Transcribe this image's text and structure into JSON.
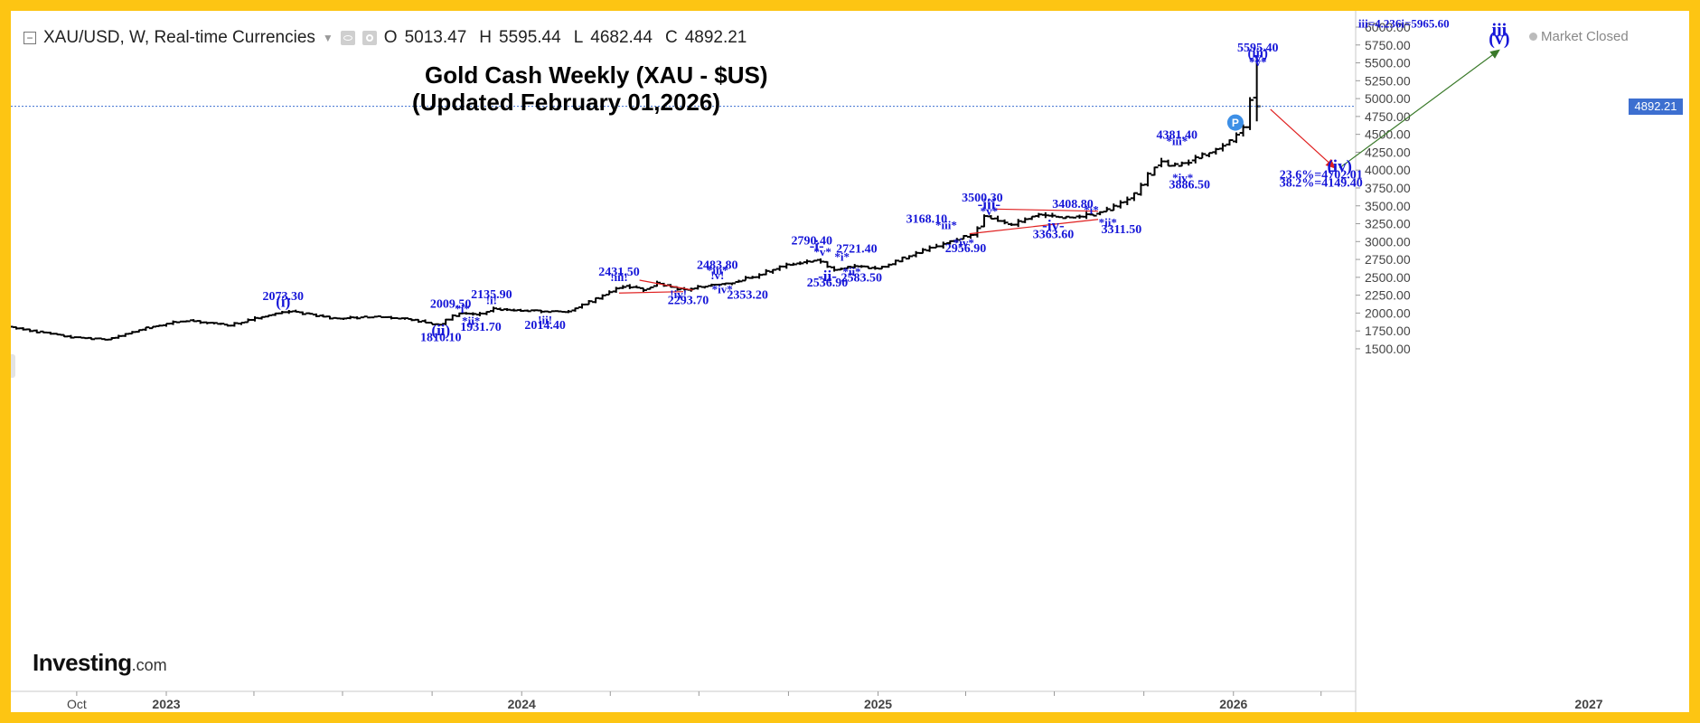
{
  "header": {
    "symbol_title": "XAU/USD, W, Real-time Currencies",
    "ohlc": [
      {
        "key": "O",
        "value": "5013.47"
      },
      {
        "key": "H",
        "value": "5595.44"
      },
      {
        "key": "L",
        "value": "4682.44"
      },
      {
        "key": "C",
        "value": "4892.21"
      }
    ]
  },
  "market_status": "Market Closed",
  "title_line1": "Gold Cash Weekly (XAU - $US)",
  "title_line2": "(Updated February 01,2026)",
  "logo": {
    "main": "Investing",
    "suffix": ".com"
  },
  "current_price_label": "4892.21",
  "colors": {
    "frame": "#fdc513",
    "label": "#1616d8",
    "bars": "#000000",
    "price_line": "#3d6fd0",
    "up_arrow": "#3a7a2a",
    "down_arrow": "#e02020",
    "triangle": "#e02020"
  },
  "chart_data": {
    "type": "ohlc",
    "symbol": "XAU/USD",
    "interval": "W",
    "ylim": [
      1380,
      6080
    ],
    "y_ticks": [
      "6000.00",
      "5750.00",
      "5500.00",
      "5250.00",
      "5000.00",
      "4750.00",
      "4500.00",
      "4250.00",
      "4000.00",
      "3750.00",
      "3500.00",
      "3250.00",
      "3000.00",
      "2750.00",
      "2500.00",
      "2250.00",
      "2000.00",
      "1750.00",
      "1500.00"
    ],
    "x_ticks": [
      {
        "label": "Oct",
        "date": "2022-10-01",
        "bold": false
      },
      {
        "label": "2023",
        "date": "2023-01-01",
        "bold": true
      },
      {
        "label": "2024",
        "date": "2024-01-01",
        "bold": true
      },
      {
        "label": "2025",
        "date": "2025-01-01",
        "bold": true
      },
      {
        "label": "2026",
        "date": "2026-01-01",
        "bold": true
      },
      {
        "label": "2027",
        "date": "2027-01-01",
        "bold": true
      }
    ],
    "last_close": 4892.21,
    "price_path": [
      [
        "2022-07-24",
        1800
      ],
      [
        "2022-09-25",
        1660
      ],
      [
        "2022-11-01",
        1630
      ],
      [
        "2022-12-10",
        1790
      ],
      [
        "2023-01-20",
        1900
      ],
      [
        "2023-03-05",
        1830
      ],
      [
        "2023-05-04",
        2030
      ],
      [
        "2023-06-25",
        1920
      ],
      [
        "2023-08-01",
        1950
      ],
      [
        "2023-09-10",
        1910
      ],
      [
        "2023-10-06",
        1830
      ],
      [
        "2023-10-27",
        2000
      ],
      [
        "2023-11-15",
        1975
      ],
      [
        "2023-12-03",
        2060
      ],
      [
        "2023-12-15",
        2040
      ],
      [
        "2024-01-20",
        2030
      ],
      [
        "2024-02-14",
        2010
      ],
      [
        "2024-03-10",
        2160
      ],
      [
        "2024-04-12",
        2380
      ],
      [
        "2024-05-05",
        2330
      ],
      [
        "2024-05-20",
        2420
      ],
      [
        "2024-06-15",
        2320
      ],
      [
        "2024-07-15",
        2400
      ],
      [
        "2024-08-04",
        2430
      ],
      [
        "2024-08-25",
        2510
      ],
      [
        "2024-09-25",
        2660
      ],
      [
        "2024-10-30",
        2750
      ],
      [
        "2024-11-14",
        2600
      ],
      [
        "2024-12-10",
        2660
      ],
      [
        "2024-12-30",
        2620
      ],
      [
        "2025-02-01",
        2800
      ],
      [
        "2025-03-10",
        2980
      ],
      [
        "2025-04-08",
        3100
      ],
      [
        "2025-04-20",
        3350
      ],
      [
        "2025-05-15",
        3230
      ],
      [
        "2025-06-12",
        3380
      ],
      [
        "2025-07-10",
        3330
      ],
      [
        "2025-08-10",
        3380
      ],
      [
        "2025-08-25",
        3450
      ],
      [
        "2025-09-20",
        3650
      ],
      [
        "2025-10-17",
        4150
      ],
      [
        "2025-10-27",
        4050
      ],
      [
        "2025-11-12",
        4100
      ],
      [
        "2025-12-10",
        4280
      ],
      [
        "2025-12-28",
        4400
      ],
      [
        "2026-01-11",
        4600
      ],
      [
        "2026-01-20",
        4980
      ],
      [
        "2026-01-31",
        4892.21
      ]
    ],
    "price_line": 4892.21,
    "projection": {
      "down": {
        "from": [
          "2026-02-08",
          4850
        ],
        "to": [
          "2026-04-15",
          4030
        ]
      },
      "up": {
        "from": [
          "2026-04-20",
          4030
        ],
        "to": [
          "2026-10-01",
          5680
        ]
      }
    },
    "triangles": [
      {
        "upper": [
          [
            "2024-05-01",
            2460
          ],
          [
            "2024-06-25",
            2320
          ]
        ],
        "lower": [
          [
            "2024-04-10",
            2280
          ],
          [
            "2024-06-15",
            2300
          ]
        ]
      },
      {
        "upper": [
          [
            "2025-05-01",
            3455
          ],
          [
            "2025-08-15",
            3425
          ]
        ],
        "lower": [
          [
            "2025-04-05",
            3110
          ],
          [
            "2025-08-15",
            3310
          ]
        ]
      }
    ],
    "markers": [
      {
        "label": "P",
        "date": "2026-01-03",
        "price": 4665
      }
    ],
    "annotations": [
      {
        "text": "5595.40",
        "date": "2026-01-26",
        "price": 5658,
        "size": 14
      },
      {
        "text": "(iii)",
        "date": "2026-01-26",
        "price": 5576,
        "size": 15
      },
      {
        "text": "-v-",
        "date": "2026-01-26",
        "price": 5510,
        "size": 17
      },
      {
        "text": "*v*",
        "date": "2026-01-26",
        "price": 5455,
        "size": 13
      },
      {
        "text": "iii=4.236i=5965.60",
        "date": "2026-06-25",
        "price": 5995,
        "size": 13
      },
      {
        "text": "iii",
        "date": "2026-10-01",
        "price": 5880,
        "size": 20
      },
      {
        "text": "(v)",
        "date": "2026-10-01",
        "price": 5760,
        "size": 20
      },
      {
        "text": "(iv)",
        "date": "2026-04-20",
        "price": 3980,
        "size": 19
      },
      {
        "text": "23.6%=4702.01",
        "date": "2026-04-01",
        "price": 3880,
        "size": 14
      },
      {
        "text": "38.2%=4149.40",
        "date": "2026-04-01",
        "price": 3770,
        "size": 14
      },
      {
        "text": "4381.40",
        "date": "2025-11-04",
        "price": 4440,
        "size": 14
      },
      {
        "text": "*iii*",
        "date": "2025-11-04",
        "price": 4350,
        "size": 13
      },
      {
        "text": "*iv*",
        "date": "2025-11-10",
        "price": 3840,
        "size": 13
      },
      {
        "text": "3886.50",
        "date": "2025-11-17",
        "price": 3745,
        "size": 14
      },
      {
        "text": "3500.30",
        "date": "2025-04-18",
        "price": 3560,
        "size": 14
      },
      {
        "text": "-iii-",
        "date": "2025-04-25",
        "price": 3450,
        "size": 17
      },
      {
        "text": "*v*",
        "date": "2025-04-25",
        "price": 3370,
        "size": 13
      },
      {
        "text": "3408.80",
        "date": "2025-07-20",
        "price": 3470,
        "size": 14
      },
      {
        "text": "*i*",
        "date": "2025-08-08",
        "price": 3390,
        "size": 13
      },
      {
        "text": "*ii*",
        "date": "2025-08-25",
        "price": 3215,
        "size": 13
      },
      {
        "text": "-iv-",
        "date": "2025-06-30",
        "price": 3155,
        "size": 17
      },
      {
        "text": "3311.50",
        "date": "2025-09-08",
        "price": 3120,
        "size": 14
      },
      {
        "text": "3363.60",
        "date": "2025-06-30",
        "price": 3050,
        "size": 14
      },
      {
        "text": "3168.10",
        "date": "2025-02-20",
        "price": 3265,
        "size": 14
      },
      {
        "text": "*iii*",
        "date": "2025-03-12",
        "price": 3175,
        "size": 13
      },
      {
        "text": "*iv*",
        "date": "2025-03-30",
        "price": 2930,
        "size": 13
      },
      {
        "text": "2956.90",
        "date": "2025-04-01",
        "price": 2850,
        "size": 14
      },
      {
        "text": "2790.40",
        "date": "2024-10-25",
        "price": 2960,
        "size": 14
      },
      {
        "text": "-i-",
        "date": "2024-10-30",
        "price": 2870,
        "size": 17
      },
      {
        "text": "*v*",
        "date": "2024-11-05",
        "price": 2800,
        "size": 13
      },
      {
        "text": "2721.40",
        "date": "2024-12-10",
        "price": 2845,
        "size": 14
      },
      {
        "text": "*i*",
        "date": "2024-11-25",
        "price": 2730,
        "size": 13
      },
      {
        "text": "*ii*",
        "date": "2024-12-05",
        "price": 2525,
        "size": 13
      },
      {
        "text": "-ii-",
        "date": "2024-11-10",
        "price": 2450,
        "size": 17
      },
      {
        "text": "2583.50",
        "date": "2024-12-15",
        "price": 2440,
        "size": 14
      },
      {
        "text": "2536.90",
        "date": "2024-11-10",
        "price": 2370,
        "size": 14
      },
      {
        "text": "2483.80",
        "date": "2024-07-20",
        "price": 2620,
        "size": 14
      },
      {
        "text": "*iii*",
        "date": "2024-07-20",
        "price": 2540,
        "size": 13
      },
      {
        "text": "!v!",
        "date": "2024-07-20",
        "price": 2470,
        "size": 13
      },
      {
        "text": "2431.50",
        "date": "2024-04-10",
        "price": 2525,
        "size": 14
      },
      {
        "text": "!iii!",
        "date": "2024-04-10",
        "price": 2445,
        "size": 13
      },
      {
        "text": "*iv*",
        "date": "2024-07-25",
        "price": 2280,
        "size": 13
      },
      {
        "text": "2353.20",
        "date": "2024-08-20",
        "price": 2200,
        "size": 14
      },
      {
        "text": "!iv!",
        "date": "2024-06-10",
        "price": 2205,
        "size": 13
      },
      {
        "text": "2293.70",
        "date": "2024-06-20",
        "price": 2125,
        "size": 14
      },
      {
        "text": "2135.90",
        "date": "2023-12-01",
        "price": 2205,
        "size": 14
      },
      {
        "text": "!i!",
        "date": "2023-12-01",
        "price": 2125,
        "size": 13
      },
      {
        "text": "2009.50",
        "date": "2023-10-20",
        "price": 2075,
        "size": 14
      },
      {
        "text": "*i*",
        "date": "2023-11-01",
        "price": 2005,
        "size": 13
      },
      {
        "text": "*ii*",
        "date": "2023-11-10",
        "price": 1835,
        "size": 13
      },
      {
        "text": "1931.70",
        "date": "2023-11-20",
        "price": 1750,
        "size": 14
      },
      {
        "text": "(ii)",
        "date": "2023-10-10",
        "price": 1690,
        "size": 17
      },
      {
        "text": "1810.10",
        "date": "2023-10-10",
        "price": 1605,
        "size": 14
      },
      {
        "text": "!ii!",
        "date": "2024-01-25",
        "price": 1850,
        "size": 13
      },
      {
        "text": "2014.40",
        "date": "2024-01-25",
        "price": 1780,
        "size": 14
      },
      {
        "text": "2073.30",
        "date": "2023-05-01",
        "price": 2180,
        "size": 14
      },
      {
        "text": "(i)",
        "date": "2023-05-01",
        "price": 2090,
        "size": 17
      }
    ]
  }
}
